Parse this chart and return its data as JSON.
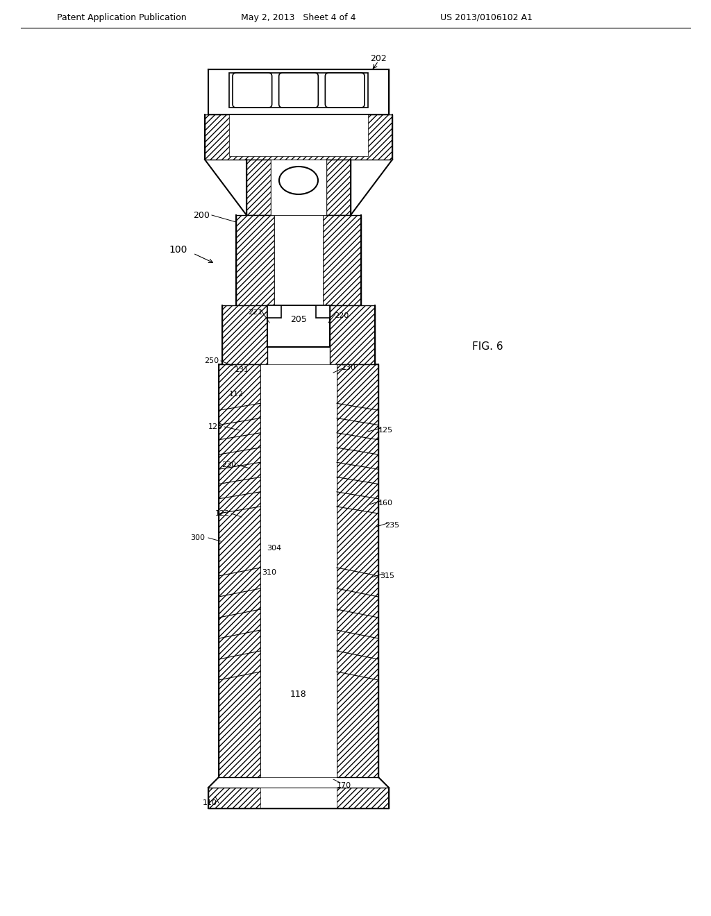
{
  "bg_color": "#ffffff",
  "line_color": "#000000",
  "hatch_color": "#000000",
  "hatch_pattern": "////",
  "header_left": "Patent Application Publication",
  "header_mid": "May 2, 2013   Sheet 4 of 4",
  "header_right": "US 2013/0106102 A1",
  "fig_label": "FIG. 6",
  "ref_100": "100",
  "ref_200": "200",
  "ref_202": "202",
  "ref_205": "205",
  "ref_220": "220",
  "ref_221": "221",
  "ref_250": "250",
  "ref_131": "131",
  "ref_130": "130",
  "ref_112": "112",
  "ref_125_left": "125",
  "ref_125_right": "125",
  "ref_230": "230",
  "ref_304": "304",
  "ref_122": "122",
  "ref_300": "300",
  "ref_310": "310",
  "ref_118": "118",
  "ref_110": "110",
  "ref_160": "160",
  "ref_235": "235",
  "ref_315": "315",
  "ref_170": "170"
}
